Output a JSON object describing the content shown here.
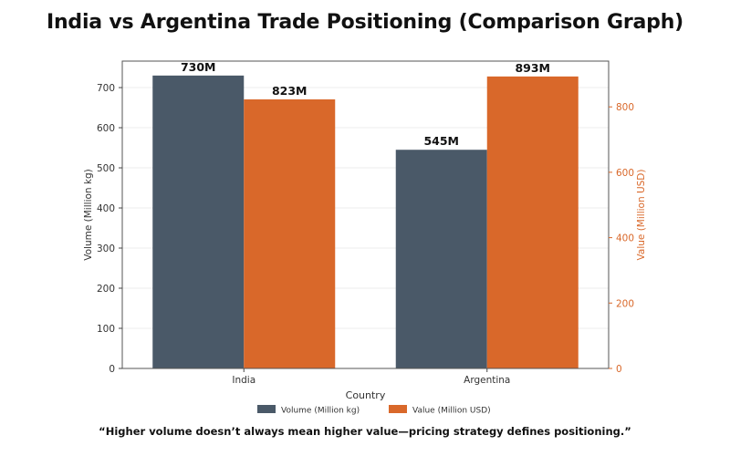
{
  "title": "India vs Argentina Trade Positioning (Comparison Graph)",
  "caption": "“Higher volume doesn’t always mean higher value—pricing strategy defines positioning.”",
  "chart_data": {
    "type": "bar",
    "categories": [
      "India",
      "Argentina"
    ],
    "series": [
      {
        "name": "Volume (Million kg)",
        "values": [
          730,
          545
        ],
        "labels": [
          "730M",
          "545M"
        ],
        "axis": "left",
        "color": "#4a5968"
      },
      {
        "name": "Value (Million USD)",
        "values": [
          823,
          893
        ],
        "labels": [
          "823M",
          "893M"
        ],
        "axis": "right",
        "color": "#d9682a"
      }
    ],
    "xlabel": "Country",
    "ylabel": "Volume (Million kg)",
    "ylabel_right": "Value (Million USD)",
    "ylim": [
      0,
      766
    ],
    "ylim_right": [
      0,
      940
    ],
    "yticks": [
      0,
      100,
      200,
      300,
      400,
      500,
      600,
      700
    ],
    "yticks_right": [
      0,
      200,
      400,
      600,
      800
    ],
    "right_axis_color": "#d9682a",
    "grid": true,
    "legend_position": "bottom-center"
  }
}
